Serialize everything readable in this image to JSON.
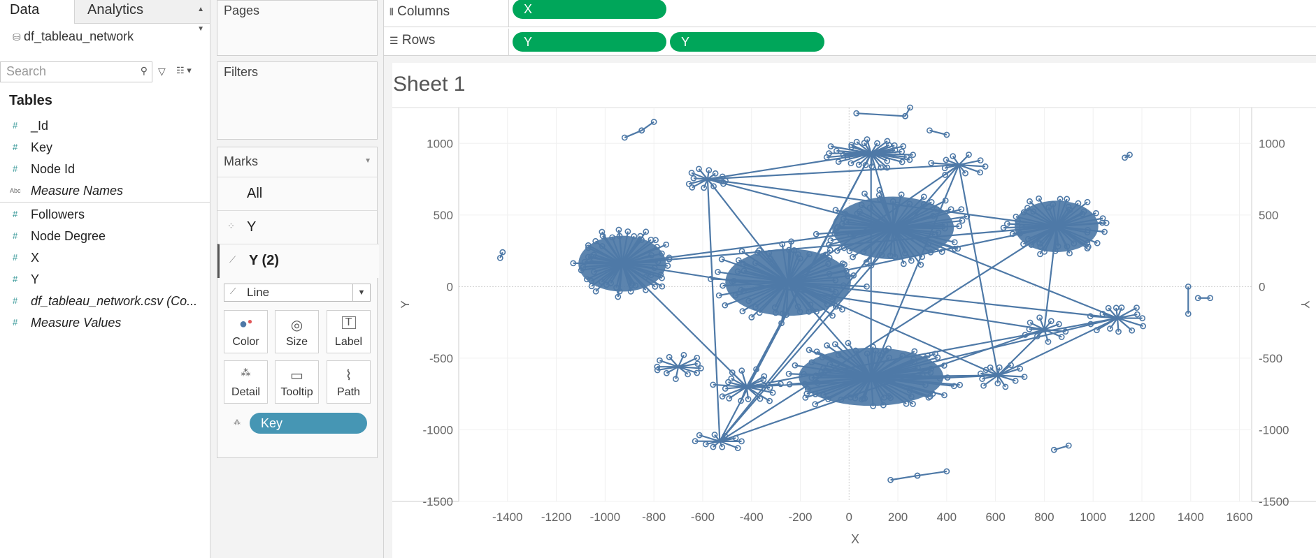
{
  "tabs": {
    "data": "Data",
    "analytics": "Analytics"
  },
  "datasource": "df_tableau_network",
  "search": {
    "placeholder": "Search"
  },
  "tables_heading": "Tables",
  "fields": [
    {
      "type": "#",
      "label": "_Id",
      "italic": false
    },
    {
      "type": "#",
      "label": "Key",
      "italic": false
    },
    {
      "type": "#",
      "label": "Node Id",
      "italic": false
    },
    {
      "type": "Abc",
      "label": "Measure Names",
      "italic": true
    },
    {
      "type": "#",
      "label": "Followers",
      "italic": false
    },
    {
      "type": "#",
      "label": "Node Degree",
      "italic": false
    },
    {
      "type": "#",
      "label": "X",
      "italic": false
    },
    {
      "type": "#",
      "label": "Y",
      "italic": false
    },
    {
      "type": "#",
      "label": "df_tableau_network.csv (Co...",
      "italic": true
    },
    {
      "type": "#",
      "label": "Measure Values",
      "italic": true
    }
  ],
  "cards": {
    "pages": "Pages",
    "filters": "Filters",
    "marks": "Marks"
  },
  "marks": {
    "rows": [
      {
        "label": "All"
      },
      {
        "label": "Y"
      },
      {
        "label": "Y (2)"
      }
    ],
    "mark_type": "Line",
    "buttons": [
      "Color",
      "Size",
      "Label",
      "Detail",
      "Tooltip",
      "Path"
    ],
    "detail_pill": "Key"
  },
  "shelves": {
    "columns_label": "Columns",
    "rows_label": "Rows",
    "columns_pills": [
      "X"
    ],
    "rows_pills": [
      "Y",
      "Y"
    ]
  },
  "sheet_title": "Sheet 1",
  "colors": {
    "pill_green": "#00a65a",
    "mark_blue": "#4e79a7",
    "detail_pill": "#4696b4"
  },
  "chart_data": {
    "type": "scatter",
    "xlabel": "X",
    "ylabel": "Y",
    "xlim": [
      -1600,
      1650
    ],
    "ylim": [
      -1500,
      1250
    ],
    "x_ticks": [
      -1400,
      -1200,
      -1000,
      -800,
      -600,
      -400,
      -200,
      0,
      200,
      400,
      600,
      800,
      1000,
      1200,
      1400,
      1600
    ],
    "y_ticks": [
      1000,
      500,
      0,
      -500,
      -1000,
      -1500
    ],
    "grid": true,
    "clusters": [
      {
        "center": [
          -930,
          160
        ],
        "rx": 230,
        "ry": 250,
        "n": 55
      },
      {
        "center": [
          -250,
          30
        ],
        "rx": 330,
        "ry": 300,
        "n": 65
      },
      {
        "center": [
          90,
          -630
        ],
        "rx": 380,
        "ry": 260,
        "n": 70
      },
      {
        "center": [
          180,
          410
        ],
        "rx": 320,
        "ry": 280,
        "n": 60
      },
      {
        "center": [
          850,
          420
        ],
        "rx": 220,
        "ry": 230,
        "n": 45
      },
      {
        "center": [
          90,
          930
        ],
        "rx": 190,
        "ry": 110,
        "n": 30
      },
      {
        "center": [
          -580,
          750
        ],
        "rx": 100,
        "ry": 80,
        "n": 12
      },
      {
        "center": [
          -420,
          -700
        ],
        "rx": 150,
        "ry": 130,
        "n": 18
      },
      {
        "center": [
          -700,
          -560
        ],
        "rx": 130,
        "ry": 90,
        "n": 12
      },
      {
        "center": [
          610,
          -620
        ],
        "rx": 110,
        "ry": 100,
        "n": 12
      },
      {
        "center": [
          1100,
          -220
        ],
        "rx": 120,
        "ry": 120,
        "n": 14
      },
      {
        "center": [
          800,
          -300
        ],
        "rx": 100,
        "ry": 90,
        "n": 10
      },
      {
        "center": [
          -530,
          -1080
        ],
        "rx": 110,
        "ry": 70,
        "n": 10
      },
      {
        "center": [
          450,
          850
        ],
        "rx": 120,
        "ry": 80,
        "n": 10
      }
    ],
    "small_links": [
      [
        [
          -920,
          1040
        ],
        [
          -850,
          1090
        ]
      ],
      [
        [
          -850,
          1090
        ],
        [
          -800,
          1150
        ]
      ],
      [
        [
          -1430,
          200
        ],
        [
          -1420,
          240
        ]
      ],
      [
        [
          30,
          1210
        ],
        [
          230,
          1190
        ]
      ],
      [
        [
          230,
          1190
        ],
        [
          250,
          1250
        ]
      ],
      [
        [
          330,
          1090
        ],
        [
          400,
          1060
        ]
      ],
      [
        [
          1130,
          900
        ],
        [
          1150,
          920
        ]
      ],
      [
        [
          1390,
          0
        ],
        [
          1390,
          -190
        ]
      ],
      [
        [
          1430,
          -80
        ],
        [
          1480,
          -80
        ]
      ],
      [
        [
          170,
          -1350
        ],
        [
          280,
          -1320
        ]
      ],
      [
        [
          280,
          -1320
        ],
        [
          400,
          -1290
        ]
      ],
      [
        [
          840,
          -1140
        ],
        [
          900,
          -1110
        ]
      ]
    ]
  }
}
